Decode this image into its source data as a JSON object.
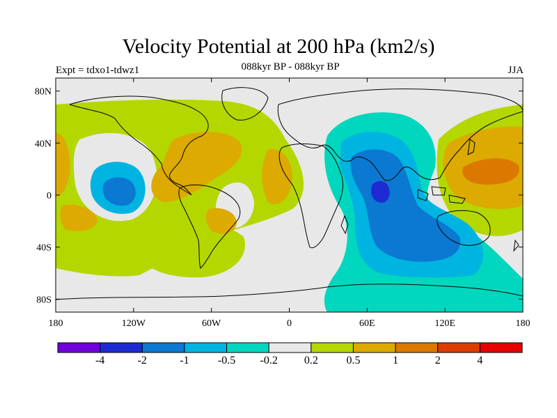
{
  "title": "Velocity Potential at 200 hPa (km2/s)",
  "experiment": "Expt = tdxo1-tdwz1",
  "period": "088kyr BP - 088kyr BP",
  "season": "JJA",
  "x_ticks": [
    {
      "lon": -180,
      "label": "180"
    },
    {
      "lon": -120,
      "label": "120W"
    },
    {
      "lon": -60,
      "label": "60W"
    },
    {
      "lon": 0,
      "label": "0"
    },
    {
      "lon": 60,
      "label": "60E"
    },
    {
      "lon": 120,
      "label": "120E"
    },
    {
      "lon": 180,
      "label": "180"
    }
  ],
  "y_ticks": [
    {
      "lat": 80,
      "label": "80N"
    },
    {
      "lat": 40,
      "label": "40N"
    },
    {
      "lat": 0,
      "label": "0"
    },
    {
      "lat": -40,
      "label": "40S"
    },
    {
      "lat": -80,
      "label": "80S"
    }
  ],
  "colorbar": {
    "colors": [
      "#6f00dc",
      "#1e2bd2",
      "#0b78d2",
      "#00b4e1",
      "#00d7be",
      "#e8e8e8",
      "#b4d700",
      "#dcaa00",
      "#dc7800",
      "#dc3c00",
      "#e60000"
    ],
    "labels": [
      "-4",
      "-2",
      "-1",
      "-0.5",
      "-0.2",
      "0.2",
      "0.5",
      "1",
      "2",
      "4"
    ]
  },
  "colors": {
    "land_outline": "#000000",
    "frame": "#000000"
  }
}
